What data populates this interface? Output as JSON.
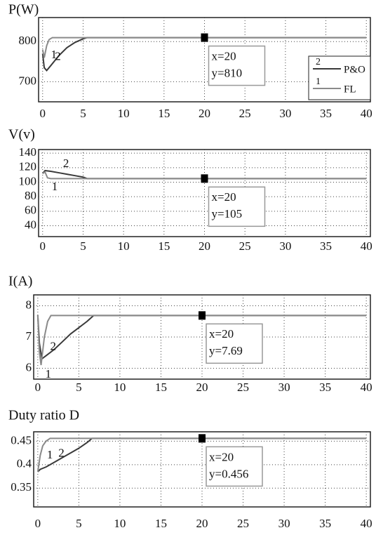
{
  "chart_data": [
    {
      "type": "line",
      "ylabel": "P(W)",
      "xlim": [
        -0.5,
        40.5
      ],
      "ylim": [
        650,
        860
      ],
      "xticks": [
        0,
        5,
        10,
        15,
        20,
        25,
        30,
        35,
        40
      ],
      "yticks": [
        700,
        800
      ],
      "grid": true,
      "legend": "right",
      "series": [
        {
          "name": "P&O",
          "label": "2",
          "color": "#3a3a3a",
          "x": [
            0,
            0.2,
            0.5,
            1,
            2,
            3,
            4,
            5,
            5.5,
            40
          ],
          "values": [
            770,
            735,
            728,
            740,
            765,
            785,
            798,
            807,
            810,
            810
          ]
        },
        {
          "name": "FL",
          "label": "1",
          "color": "#8a8a8a",
          "x": [
            0,
            0.2,
            0.5,
            0.8,
            1.2,
            40
          ],
          "values": [
            780,
            760,
            790,
            805,
            810,
            810
          ]
        }
      ],
      "datatip": {
        "x": 20,
        "y": 810,
        "labels": [
          "x=20",
          "y=810"
        ]
      }
    },
    {
      "type": "line",
      "ylabel": "V(v)",
      "xlim": [
        -0.5,
        40.5
      ],
      "ylim": [
        25,
        145
      ],
      "xticks": [
        0,
        5,
        10,
        15,
        20,
        25,
        30,
        35,
        40
      ],
      "yticks": [
        40,
        60,
        80,
        100,
        120,
        140
      ],
      "grid": true,
      "series": [
        {
          "label": "2",
          "color": "#3a3a3a",
          "x": [
            0,
            0.3,
            1,
            2,
            3,
            4,
            5,
            5.5,
            40
          ],
          "values": [
            112,
            116,
            115,
            113,
            111,
            109,
            107,
            105,
            105
          ]
        },
        {
          "label": "1",
          "color": "#8a8a8a",
          "x": [
            0,
            0.3,
            0.6,
            1,
            40
          ],
          "values": [
            112,
            114,
            106,
            105,
            105
          ]
        }
      ],
      "datatip": {
        "x": 20,
        "y": 105,
        "labels": [
          "x=20",
          "y=105"
        ]
      }
    },
    {
      "type": "line",
      "ylabel": "I(A)",
      "xlim": [
        -0.5,
        40.5
      ],
      "ylim": [
        5.65,
        8.35
      ],
      "xticks": [
        0,
        5,
        10,
        15,
        20,
        25,
        30,
        35,
        40
      ],
      "yticks": [
        6,
        7,
        8
      ],
      "grid": true,
      "series": [
        {
          "label": "2",
          "color": "#3a3a3a",
          "x": [
            0,
            0.2,
            0.5,
            1,
            2,
            3,
            4,
            5,
            6,
            6.8,
            40
          ],
          "values": [
            7.7,
            6.8,
            6.3,
            6.4,
            6.6,
            6.85,
            7.1,
            7.3,
            7.5,
            7.69,
            7.69
          ]
        },
        {
          "label": "1",
          "color": "#8a8a8a",
          "x": [
            0,
            0.2,
            0.4,
            0.8,
            1.2,
            1.6,
            40
          ],
          "values": [
            7.7,
            6.5,
            6.1,
            7.0,
            7.5,
            7.69,
            7.69
          ]
        }
      ],
      "datatip": {
        "x": 20,
        "y": 7.69,
        "labels": [
          "x=20",
          "y=7.69"
        ]
      }
    },
    {
      "type": "line",
      "ylabel": "Duty ratio D",
      "xlim": [
        -0.5,
        40.5
      ],
      "ylim": [
        0.31,
        0.47
      ],
      "xticks": [
        0,
        5,
        10,
        15,
        20,
        25,
        30,
        35,
        40
      ],
      "yticks": [
        0.35,
        0.4,
        0.45
      ],
      "grid": true,
      "series": [
        {
          "label": "2",
          "color": "#3a3a3a",
          "x": [
            0,
            0.3,
            1,
            2,
            3,
            4,
            5,
            6,
            6.6,
            40
          ],
          "values": [
            0.385,
            0.39,
            0.395,
            0.405,
            0.415,
            0.425,
            0.435,
            0.447,
            0.456,
            0.456
          ]
        },
        {
          "label": "1",
          "color": "#8a8a8a",
          "x": [
            0,
            0.3,
            0.6,
            1,
            1.5,
            40
          ],
          "values": [
            0.385,
            0.42,
            0.44,
            0.45,
            0.456,
            0.456
          ]
        }
      ],
      "datatip": {
        "x": 20,
        "y": 0.456,
        "labels": [
          "x=20",
          "y=0.456"
        ]
      }
    }
  ]
}
